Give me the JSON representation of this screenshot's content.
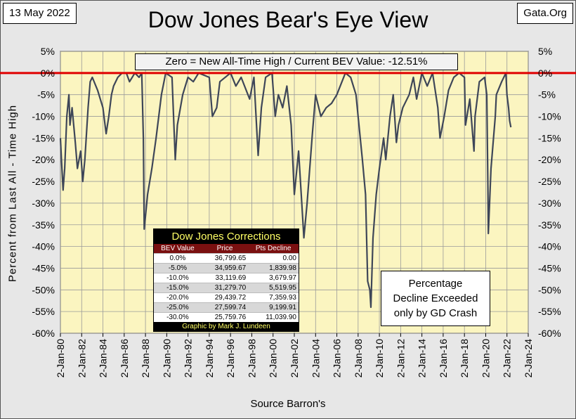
{
  "header": {
    "date": "13 May 2022",
    "site": "Gata.Org"
  },
  "colors": {
    "plot_background": "#fbf5c0",
    "series_line": "#3e4658",
    "zero_line": "#e00000"
  },
  "chart_data": {
    "type": "line",
    "title": "Dow Jones Bear's Eye View",
    "xlabel": "Source Barron's",
    "ylabel": "Percent from Last All - Time High",
    "annotation": "Zero = New All-Time High / Current BEV Value: -12.51%",
    "ylim": [
      -60,
      5
    ],
    "y_ticks": [
      "5%",
      "0%",
      "-5%",
      "-10%",
      "-15%",
      "-20%",
      "-25%",
      "-30%",
      "-35%",
      "-40%",
      "-45%",
      "-50%",
      "-55%",
      "-60%"
    ],
    "x_ticks": [
      "2-Jan-80",
      "2-Jan-82",
      "2-Jan-84",
      "2-Jan-86",
      "2-Jan-88",
      "2-Jan-90",
      "2-Jan-92",
      "2-Jan-94",
      "2-Jan-96",
      "2-Jan-98",
      "2-Jan-00",
      "2-Jan-02",
      "2-Jan-04",
      "2-Jan-06",
      "2-Jan-08",
      "2-Jan-10",
      "2-Jan-12",
      "2-Jan-14",
      "2-Jan-16",
      "2-Jan-18",
      "2-Jan-20",
      "2-Jan-22",
      "2-Jan-24"
    ],
    "grid": true,
    "series": [
      {
        "x": [
          1980.0,
          1980.1,
          1980.25,
          1980.4,
          1980.6,
          1980.8,
          1980.9,
          1981.1,
          1981.4,
          1981.6,
          1981.9,
          1982.1,
          1982.3,
          1982.6,
          1982.8,
          1983.0,
          1983.5,
          1984.0,
          1984.3,
          1984.55,
          1984.8,
          1985.0,
          1985.4,
          1985.8,
          1986.2,
          1986.5,
          1987.0,
          1987.4,
          1987.65,
          1987.8,
          1987.88,
          1988.2,
          1988.6,
          1989.0,
          1989.5,
          1989.9,
          1990.5,
          1990.8,
          1991.0,
          1991.5,
          1992.0,
          1992.5,
          1993.0,
          1994.0,
          1994.3,
          1994.7,
          1995.0,
          1996.0,
          1996.5,
          1997.0,
          1997.8,
          1998.2,
          1998.6,
          1998.9,
          1999.3,
          1999.9,
          2000.2,
          2000.5,
          2000.9,
          2001.3,
          2001.7,
          2002.0,
          2002.4,
          2002.7,
          2002.9,
          2003.2,
          2003.7,
          2004.0,
          2004.5,
          2005.0,
          2005.5,
          2006.0,
          2006.8,
          2007.3,
          2007.8,
          2008.0,
          2008.4,
          2008.7,
          2008.9,
          2009.1,
          2009.2,
          2009.4,
          2009.7,
          2010.0,
          2010.4,
          2010.6,
          2011.0,
          2011.3,
          2011.6,
          2011.8,
          2012.2,
          2012.8,
          2013.2,
          2013.5,
          2014.0,
          2014.5,
          2015.0,
          2015.5,
          2015.7,
          2016.1,
          2016.5,
          2017.0,
          2017.5,
          2018.0,
          2018.1,
          2018.5,
          2018.9,
          2019.0,
          2019.4,
          2019.9,
          2020.1,
          2020.2,
          2020.25,
          2020.5,
          2020.9,
          2021.0,
          2021.5,
          2021.9,
          2022.0,
          2022.15,
          2022.25,
          2022.37
        ],
        "values": [
          -15,
          -20,
          -27,
          -22,
          -10,
          -5,
          -12,
          -8,
          -16,
          -22,
          -18,
          -25,
          -20,
          -8,
          -2,
          -1,
          -4,
          -8,
          -14,
          -10,
          -5,
          -3,
          -1,
          0,
          0,
          -2,
          0,
          -1,
          0,
          -15,
          -36,
          -28,
          -22,
          -15,
          -5,
          0,
          -1,
          -20,
          -12,
          -5,
          -1,
          -2,
          0,
          -1,
          -10,
          -8,
          -2,
          0,
          -3,
          -1,
          -6,
          -1,
          -19,
          -8,
          -1,
          0,
          -10,
          -5,
          -8,
          -3,
          -12,
          -28,
          -18,
          -30,
          -38,
          -30,
          -14,
          -5,
          -10,
          -8,
          -7,
          -5,
          0,
          -1,
          -5,
          -10,
          -20,
          -28,
          -48,
          -50,
          -54,
          -38,
          -28,
          -22,
          -15,
          -20,
          -10,
          -5,
          -16,
          -12,
          -8,
          -5,
          -1,
          -6,
          0,
          -3,
          0,
          -8,
          -15,
          -10,
          -4,
          -1,
          0,
          -1,
          -12,
          -6,
          -18,
          -10,
          -2,
          -1,
          -5,
          -25,
          -37,
          -22,
          -10,
          -5,
          -2,
          0,
          -5,
          -8,
          -11,
          -12.51
        ]
      }
    ]
  },
  "corrections_table": {
    "title": "Dow Jones Corrections",
    "headers": [
      "BEV Value",
      "Price",
      "Pts Decline"
    ],
    "rows": [
      [
        "0.0%",
        "36,799.65",
        "0.00"
      ],
      [
        "-5.0%",
        "34,959.67",
        "1,839.98"
      ],
      [
        "-10.0%",
        "33,119.69",
        "3,679.97"
      ],
      [
        "-15.0%",
        "31,279.70",
        "5,519.95"
      ],
      [
        "-20.0%",
        "29,439.72",
        "7,359.93"
      ],
      [
        "-25.0%",
        "27,599.74",
        "9,199.91"
      ],
      [
        "-30.0%",
        "25,759.76",
        "11,039.90"
      ]
    ],
    "footer": "Graphic by Mark J. Lundeen"
  },
  "note": {
    "line1": "Percentage",
    "line2": "Decline Exceeded",
    "line3": "only by GD Crash"
  }
}
